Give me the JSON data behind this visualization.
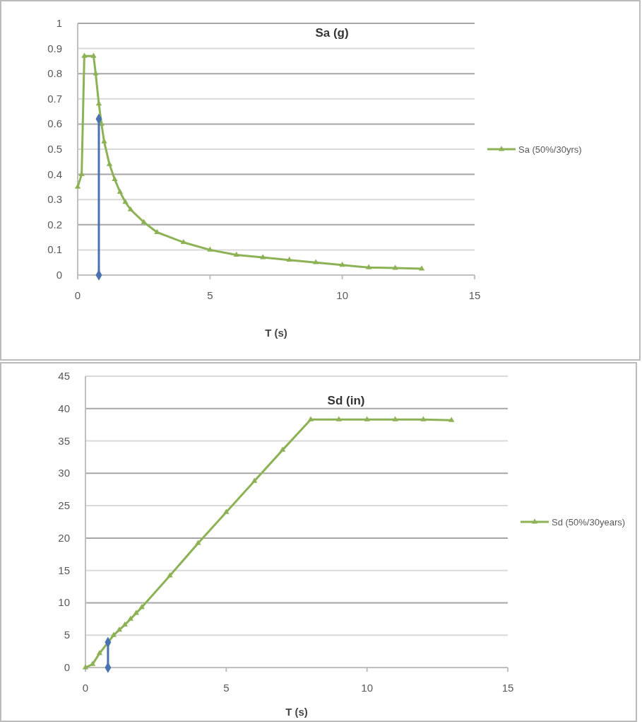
{
  "chart_data": [
    {
      "type": "line",
      "title": "Sa (g)",
      "xlabel": "T (s)",
      "xlim": [
        0,
        15
      ],
      "xticks": [
        0,
        5,
        10,
        15
      ],
      "ylim": [
        0,
        1
      ],
      "yticks": [
        0,
        0.1,
        0.2,
        0.3,
        0.4,
        0.5,
        0.6,
        0.7,
        0.8,
        0.9,
        1
      ],
      "grid": "y",
      "legend": "right",
      "series": [
        {
          "name": "Sa (50%/30yrs)",
          "color": "#8db256",
          "marker": "triangle",
          "x": [
            0,
            0.15,
            0.25,
            0.6,
            0.68,
            0.8,
            0.9,
            1,
            1.2,
            1.4,
            1.6,
            1.8,
            2,
            2.5,
            3,
            4,
            5,
            6,
            7,
            8,
            9,
            10,
            11,
            12,
            13
          ],
          "values": [
            0.35,
            0.4,
            0.87,
            0.87,
            0.8,
            0.68,
            0.6,
            0.53,
            0.44,
            0.38,
            0.33,
            0.29,
            0.26,
            0.21,
            0.17,
            0.13,
            0.1,
            0.08,
            0.07,
            0.06,
            0.05,
            0.04,
            0.03,
            0.028,
            0.025
          ]
        },
        {
          "color": "#4a72b0",
          "marker": "diamond",
          "x": [
            0.8,
            0.8
          ],
          "values": [
            0.62,
            0
          ]
        }
      ]
    },
    {
      "type": "line",
      "title": "Sd (in)",
      "xlabel": "T (s)",
      "xlim": [
        0,
        15
      ],
      "xticks": [
        0,
        5,
        10,
        15
      ],
      "ylim": [
        0,
        45
      ],
      "yticks": [
        0,
        5,
        10,
        15,
        20,
        25,
        30,
        35,
        40,
        45
      ],
      "grid": "y",
      "legend": "right",
      "series": [
        {
          "name": "Sd (50%/30years)",
          "color": "#8db256",
          "marker": "triangle",
          "x": [
            0,
            0.25,
            0.5,
            1,
            1.2,
            1.4,
            1.6,
            1.8,
            2,
            3,
            4,
            5,
            6,
            7,
            8,
            9,
            10,
            11,
            12,
            13
          ],
          "values": [
            0,
            0.5,
            2.2,
            5,
            5.8,
            6.6,
            7.5,
            8.4,
            9.3,
            14.2,
            19.2,
            24,
            28.8,
            33.6,
            38.3,
            38.3,
            38.3,
            38.3,
            38.3,
            38.2
          ]
        },
        {
          "color": "#4a72b0",
          "marker": "diamond",
          "x": [
            0.8,
            0.8
          ],
          "values": [
            3.9,
            0
          ]
        }
      ]
    }
  ]
}
